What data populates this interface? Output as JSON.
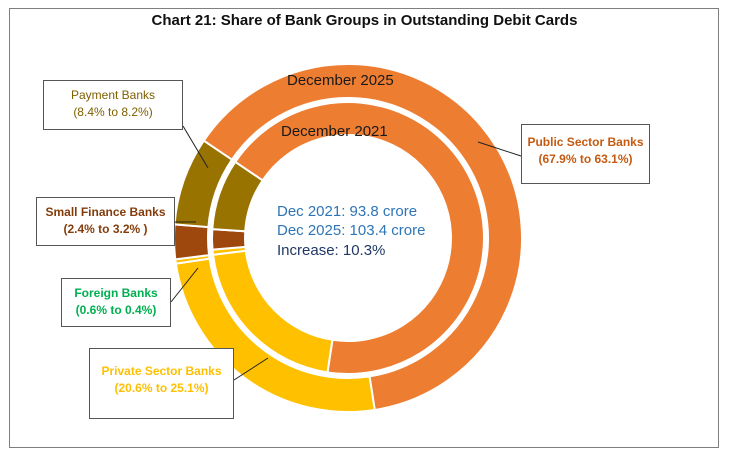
{
  "chart_data": {
    "type": "donut",
    "title": "Chart 21: Share of Bank Groups in Outstanding Debit Cards",
    "rings": [
      {
        "name": "December 2025",
        "position": "outer",
        "values": [
          {
            "category": "Public Sector Banks",
            "value": 63.1
          },
          {
            "category": "Private Sector Banks",
            "value": 25.1
          },
          {
            "category": "Foreign Banks",
            "value": 0.4
          },
          {
            "category": "Small Finance Banks",
            "value": 3.2
          },
          {
            "category": "Payment Banks",
            "value": 8.2
          }
        ]
      },
      {
        "name": "December 2021",
        "position": "inner",
        "values": [
          {
            "category": "Public Sector Banks",
            "value": 67.9
          },
          {
            "category": "Private Sector Banks",
            "value": 20.6
          },
          {
            "category": "Foreign Banks",
            "value": 0.6
          },
          {
            "category": "Small Finance Banks",
            "value": 2.4
          },
          {
            "category": "Payment Banks",
            "value": 8.4
          }
        ]
      }
    ],
    "center_text": [
      "Dec 2021: 93.8 crore",
      "Dec 2025: 103.4 crore",
      "Increase: 10.3%"
    ],
    "colors": {
      "Public Sector Banks": "#ed7d31",
      "Private Sector Banks": "#ffc000",
      "Foreign Banks": "#ffc000",
      "Small Finance Banks": "#9e480e",
      "Payment Banks": "#997300"
    },
    "callouts": [
      {
        "name": "Payment Banks",
        "range": "(8.4% to 8.2%)",
        "color": "#7f6000"
      },
      {
        "name": "Small Finance Banks",
        "range": "(2.4% to 3.2% )",
        "color": "#843c0c"
      },
      {
        "name": "Foreign Banks",
        "range": "(0.6% to 0.4%)",
        "color": "#00b050"
      },
      {
        "name": "Private Sector Banks",
        "range": "(20.6% to 25.1%)",
        "color": "#ffc000"
      },
      {
        "name": "Public Sector Banks",
        "range": "(67.9% to 63.1%)",
        "color": "#c55a11"
      }
    ],
    "center_colors": [
      "#2e75b6",
      "#2e75b6",
      "#1f3864"
    ]
  }
}
